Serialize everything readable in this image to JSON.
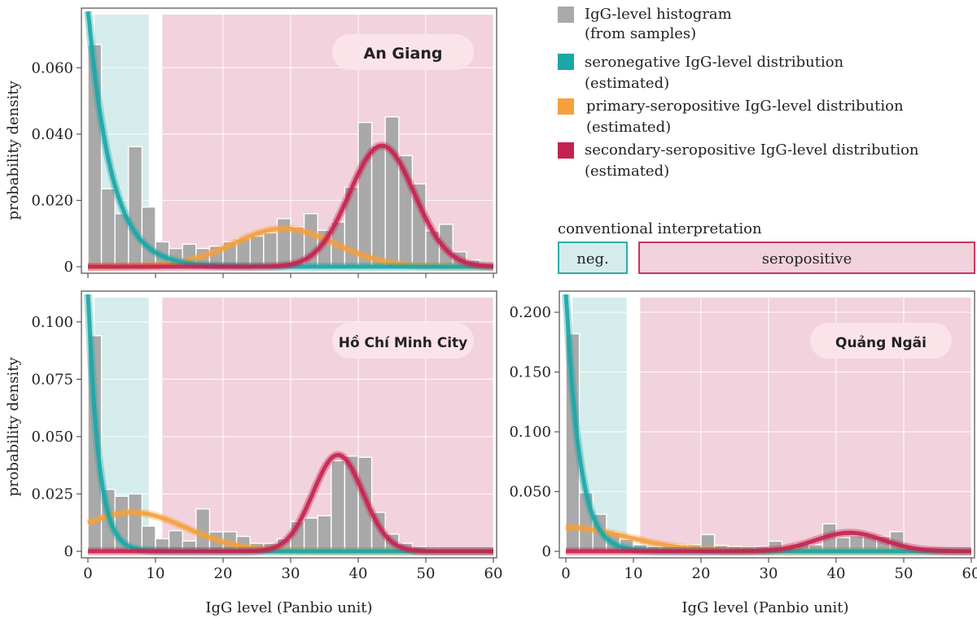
{
  "colors": {
    "histogram": "#a9a9a9",
    "seronegative": "#1ba6a6",
    "primary": "#f5a03c",
    "secondary": "#c5234f",
    "neg_region": "#d5ecec",
    "pos_region": "#f2d2dc",
    "pill_bg": "#fbe3ea"
  },
  "x_label": "IgG level (Panbio unit)",
  "y_label": "probability density",
  "legend": {
    "items": [
      {
        "key": "histogram",
        "line1": "IgG-level histogram",
        "line2": "(from samples)"
      },
      {
        "key": "seronegative",
        "line1": "seronegative IgG-level distribution",
        "line2": "(estimated)"
      },
      {
        "key": "primary",
        "line1": "primary-seropositive IgG-level distribution",
        "line2": "(estimated)"
      },
      {
        "key": "secondary",
        "line1": "secondary-seropositive IgG-level distribution",
        "line2": "(estimated)"
      }
    ],
    "conventional_title": "conventional interpretation",
    "neg_label": "neg.",
    "pos_label": "seropositive"
  },
  "chart_data": [
    {
      "type": "bar",
      "title": "An Giang",
      "xlabel": "",
      "ylabel": "probability density",
      "xlim": [
        0,
        60
      ],
      "ylim": [
        0,
        0.077
      ],
      "y_ticks": [
        0,
        0.02,
        0.04,
        0.06
      ],
      "y_tick_labels": [
        "0",
        "0.020",
        "0.040",
        "0.060"
      ],
      "x_ticks": [
        0,
        10,
        20,
        30,
        40,
        50,
        60
      ],
      "x_tick_labels": [],
      "neg_region": [
        1,
        9
      ],
      "pos_region": [
        11,
        60
      ],
      "bin_width": 2,
      "bin_starts": [
        0,
        2,
        4,
        6,
        8,
        10,
        12,
        14,
        16,
        18,
        20,
        22,
        24,
        26,
        28,
        30,
        32,
        34,
        36,
        38,
        40,
        42,
        44,
        46,
        48,
        50,
        52,
        54,
        56,
        58
      ],
      "values": [
        0.067,
        0.0235,
        0.016,
        0.0362,
        0.018,
        0.0075,
        0.0055,
        0.0068,
        0.0055,
        0.0062,
        0.0075,
        0.0085,
        0.0092,
        0.0102,
        0.0145,
        0.012,
        0.016,
        0.011,
        0.0135,
        0.024,
        0.0435,
        0.0365,
        0.0452,
        0.0335,
        0.025,
        0.0108,
        0.0128,
        0.0045,
        0.002,
        0.001
      ],
      "curves": {
        "seronegative": {
          "shape": "exponential",
          "peak": 0.078,
          "rate": 0.29
        },
        "primary": {
          "shape": "gaussian",
          "peak": 0.0115,
          "mean": 29,
          "sd": 7.5
        },
        "secondary": {
          "shape": "gaussian",
          "peak": 0.0365,
          "mean": 43.5,
          "sd": 4.8
        }
      }
    },
    {
      "type": "bar",
      "title": "Hồ Chí Minh City",
      "xlabel": "IgG level (Panbio unit)",
      "ylabel": "probability density",
      "xlim": [
        0,
        60
      ],
      "ylim": [
        0,
        0.112
      ],
      "y_ticks": [
        0,
        0.025,
        0.05,
        0.075,
        0.1
      ],
      "y_tick_labels": [
        "0",
        "0.025",
        "0.050",
        "0.075",
        "0.100"
      ],
      "x_ticks": [
        0,
        10,
        20,
        30,
        40,
        50,
        60
      ],
      "x_tick_labels": [
        "0",
        "10",
        "20",
        "30",
        "40",
        "50",
        "60"
      ],
      "neg_region": [
        1,
        9
      ],
      "pos_region": [
        11,
        60
      ],
      "bin_width": 2,
      "bin_starts": [
        0,
        2,
        4,
        6,
        8,
        10,
        12,
        14,
        16,
        18,
        20,
        22,
        24,
        26,
        28,
        30,
        32,
        34,
        36,
        38,
        40,
        42,
        44,
        46,
        48,
        50,
        52,
        54,
        56,
        58
      ],
      "values": [
        0.094,
        0.027,
        0.024,
        0.025,
        0.011,
        0.0055,
        0.009,
        0.0045,
        0.0185,
        0.0085,
        0.0085,
        0.0065,
        0.0035,
        0.0035,
        0.0055,
        0.013,
        0.0145,
        0.0155,
        0.0395,
        0.0415,
        0.041,
        0.017,
        0.0075,
        0.0035,
        0.002,
        0.001,
        0.0005,
        0,
        0,
        0
      ],
      "curves": {
        "seronegative": {
          "shape": "exponential",
          "peak": 0.115,
          "rate": 0.65
        },
        "primary": {
          "shape": "gaussian",
          "peak": 0.017,
          "mean": 6.5,
          "sd": 8
        },
        "secondary": {
          "shape": "gaussian",
          "peak": 0.042,
          "mean": 37,
          "sd": 3.7
        }
      }
    },
    {
      "type": "bar",
      "title": "Quảng Ngãi",
      "xlabel": "IgG level (Panbio unit)",
      "ylabel": "",
      "xlim": [
        0,
        60
      ],
      "ylim": [
        0,
        0.215
      ],
      "y_ticks": [
        0,
        0.05,
        0.1,
        0.15,
        0.2
      ],
      "y_tick_labels": [
        "0",
        "0.050",
        "0.100",
        "0.150",
        "0.200"
      ],
      "x_ticks": [
        0,
        10,
        20,
        30,
        40,
        50,
        60
      ],
      "x_tick_labels": [
        "0",
        "10",
        "20",
        "30",
        "40",
        "50",
        "60"
      ],
      "neg_region": [
        1,
        9
      ],
      "pos_region": [
        11,
        60
      ],
      "bin_width": 2,
      "bin_starts": [
        0,
        2,
        4,
        6,
        8,
        10,
        12,
        14,
        16,
        18,
        20,
        22,
        24,
        26,
        28,
        30,
        32,
        34,
        36,
        38,
        40,
        42,
        44,
        46,
        48,
        50,
        52,
        54,
        56,
        58
      ],
      "values": [
        0.182,
        0.049,
        0.031,
        0.016,
        0.01,
        0.0055,
        0.004,
        0.004,
        0.0055,
        0.0055,
        0.014,
        0.005,
        0.004,
        0.0035,
        0.004,
        0.0085,
        0.003,
        0.0065,
        0.0055,
        0.023,
        0.0115,
        0.013,
        0.0125,
        0.0125,
        0.0165,
        0.0035,
        0.002,
        0.001,
        0.0005,
        0
      ],
      "curves": {
        "seronegative": {
          "shape": "exponential",
          "peak": 0.22,
          "rate": 0.5
        },
        "primary": {
          "shape": "gaussian",
          "peak": 0.02,
          "mean": 0,
          "sd": 9
        },
        "secondary": {
          "shape": "gaussian",
          "peak": 0.0155,
          "mean": 42,
          "sd": 5
        }
      }
    }
  ]
}
